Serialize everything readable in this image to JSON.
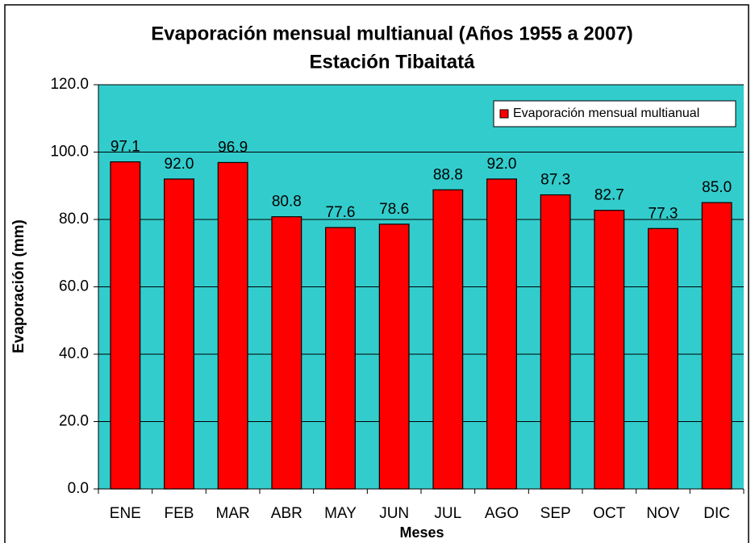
{
  "chart_data": {
    "type": "bar",
    "title": "Evaporación mensual multianual (Años 1955 a 2007)",
    "subtitle": "Estación Tibaitatá",
    "x_label": "Meses",
    "y_label": "Evaporación (mm)",
    "categories": [
      "ENE",
      "FEB",
      "MAR",
      "ABR",
      "MAY",
      "JUN",
      "JUL",
      "AGO",
      "SEP",
      "OCT",
      "NOV",
      "DIC"
    ],
    "series": [
      {
        "name": "Evaporación mensual multianual",
        "color": "#ff0000",
        "values": [
          97.1,
          92.0,
          96.9,
          80.8,
          77.6,
          78.6,
          88.8,
          92.0,
          87.3,
          82.7,
          77.3,
          85.0
        ],
        "value_labels": [
          "97.1",
          "92.0",
          "96.9",
          "80.8",
          "77.6",
          "78.6",
          "88.8",
          "92.0",
          "87.3",
          "82.7",
          "77.3",
          "85.0"
        ]
      }
    ],
    "ylim": [
      0,
      120
    ],
    "yticks": [
      {
        "value": 0,
        "label": "0.0"
      },
      {
        "value": 20,
        "label": "20.0"
      },
      {
        "value": 40,
        "label": "40.0"
      },
      {
        "value": 60,
        "label": "60.0"
      },
      {
        "value": 80,
        "label": "80.0"
      },
      {
        "value": 100,
        "label": "100.0"
      },
      {
        "value": 120,
        "label": "120.0"
      }
    ],
    "grid": true,
    "plot_background": "#33cccc",
    "legend_position": "upper right"
  }
}
